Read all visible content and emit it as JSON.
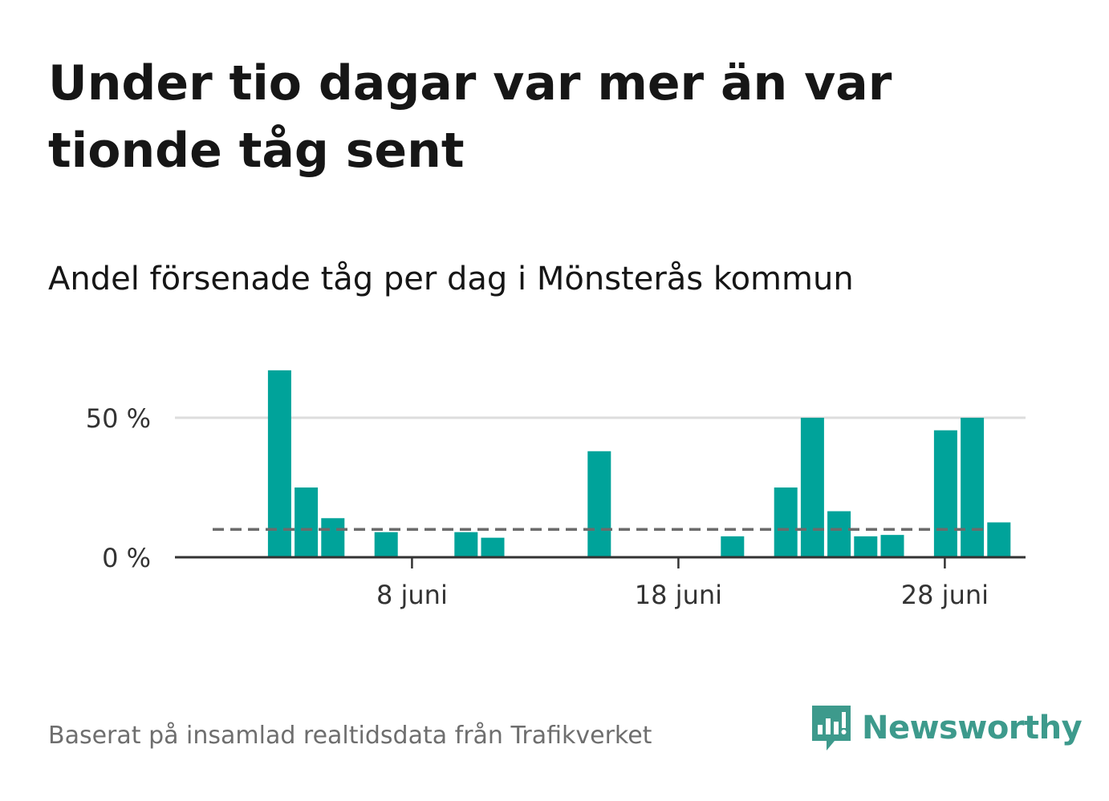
{
  "title": "Under tio dagar var mer än var tionde tåg sent",
  "subtitle": "Andel försenade tåg per dag i Mönsterås kommun",
  "footer": "Baserat på insamlad realtidsdata från Trafikverket",
  "brand": {
    "name": "Newsworthy",
    "icon": "newsworthy-logo-icon",
    "color": "#3d9a8c"
  },
  "colors": {
    "bar": "#00a39a",
    "reference_line": "#6b6b6b",
    "grid": "#dddddd",
    "axis": "#333333"
  },
  "chart_data": {
    "type": "bar",
    "title": "",
    "xlabel": "",
    "ylabel": "",
    "x_unit": "juni",
    "x": [
      1,
      2,
      3,
      4,
      5,
      6,
      7,
      8,
      9,
      10,
      11,
      12,
      13,
      14,
      15,
      16,
      17,
      18,
      19,
      20,
      21,
      22,
      23,
      24,
      25,
      26,
      27,
      28,
      29,
      30
    ],
    "values": [
      0,
      0,
      67,
      25,
      14,
      0,
      9,
      0,
      0,
      9,
      7,
      0,
      0,
      0,
      38,
      0,
      0,
      0,
      0,
      7.5,
      0,
      25,
      50,
      16.5,
      7.5,
      8,
      0,
      45.5,
      50,
      12.5
    ],
    "reference_line": 10,
    "ylim": [
      0,
      70
    ],
    "y_ticks": [
      {
        "value": 0,
        "label": "0 %"
      },
      {
        "value": 50,
        "label": "50 %"
      }
    ],
    "x_ticks": [
      {
        "value": 8,
        "label": "8 juni"
      },
      {
        "value": 18,
        "label": "18 juni"
      },
      {
        "value": 28,
        "label": "28 juni"
      }
    ],
    "grid": true
  }
}
